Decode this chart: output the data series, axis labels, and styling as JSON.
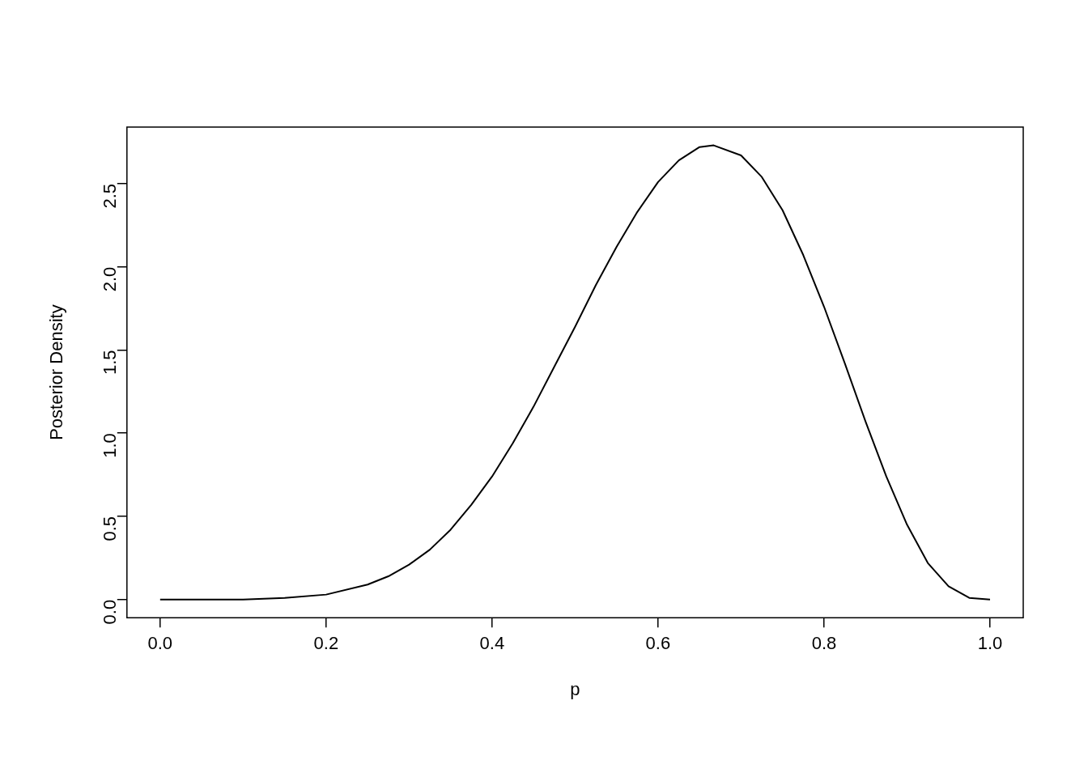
{
  "chart_data": {
    "type": "line",
    "xlabel": "p",
    "ylabel": "Posterior Density",
    "x": [
      0,
      0.05,
      0.1,
      0.15,
      0.2,
      0.25,
      0.275,
      0.3,
      0.325,
      0.35,
      0.375,
      0.4,
      0.425,
      0.45,
      0.475,
      0.5,
      0.525,
      0.55,
      0.575,
      0.6,
      0.625,
      0.65,
      0.667,
      0.7,
      0.725,
      0.75,
      0.775,
      0.8,
      0.825,
      0.85,
      0.875,
      0.9,
      0.925,
      0.95,
      0.975,
      1
    ],
    "series": [
      {
        "color": "#000000",
        "values": [
          0,
          0,
          0,
          0.01,
          0.03,
          0.09,
          0.14,
          0.21,
          0.3,
          0.42,
          0.57,
          0.74,
          0.94,
          1.16,
          1.4,
          1.64,
          1.89,
          2.12,
          2.33,
          2.51,
          2.64,
          2.72,
          2.73,
          2.67,
          2.54,
          2.34,
          2.07,
          1.76,
          1.42,
          1.07,
          0.74,
          0.45,
          0.22,
          0.08,
          0.01,
          0
        ]
      }
    ],
    "xlim": [
      -0.04,
      1.04
    ],
    "ylim": [
      -0.109,
      2.84
    ],
    "xticks": [
      {
        "value": 0,
        "label": "0.0"
      },
      0.2,
      0.4,
      0.6,
      0.8,
      {
        "value": 1,
        "label": "1.0"
      }
    ],
    "yticks": [
      {
        "value": 0,
        "label": "0.0"
      },
      0.5,
      {
        "value": 1,
        "label": "1.0"
      },
      1.5,
      {
        "value": 2,
        "label": "2.0"
      },
      2.5
    ],
    "grid": false,
    "legend": false,
    "marker": "none",
    "line_style": "solid"
  }
}
